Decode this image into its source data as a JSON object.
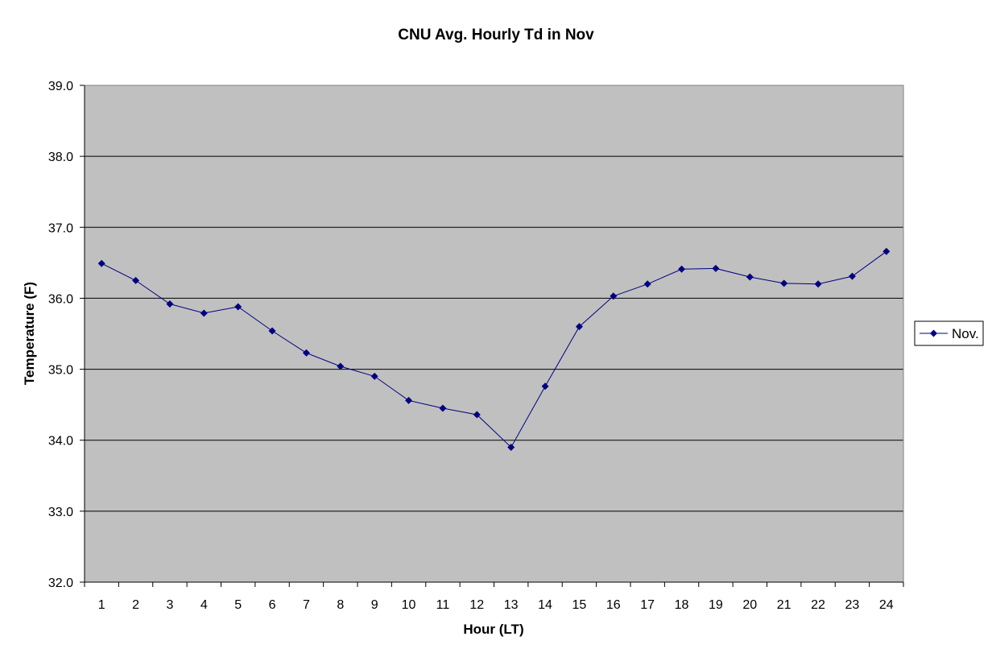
{
  "chart_data": {
    "type": "line",
    "title": "CNU Avg. Hourly Td in Nov",
    "xlabel": "Hour (LT)",
    "ylabel": "Temperature (F)",
    "categories": [
      "1",
      "2",
      "3",
      "4",
      "5",
      "6",
      "7",
      "8",
      "9",
      "10",
      "11",
      "12",
      "13",
      "14",
      "15",
      "16",
      "17",
      "18",
      "19",
      "20",
      "21",
      "22",
      "23",
      "24"
    ],
    "ylim": [
      32.0,
      39.0
    ],
    "yticks": [
      "32.0",
      "33.0",
      "34.0",
      "35.0",
      "36.0",
      "37.0",
      "38.0",
      "39.0"
    ],
    "grid": true,
    "legend_position": "right",
    "plot_background": "#C0C0C0",
    "series": [
      {
        "name": "Nov.",
        "color": "#000080",
        "marker": "diamond",
        "values": [
          36.49,
          36.25,
          35.92,
          35.79,
          35.88,
          35.54,
          35.23,
          35.04,
          34.9,
          34.56,
          34.45,
          34.36,
          33.9,
          34.76,
          35.6,
          36.03,
          36.2,
          36.41,
          36.42,
          36.3,
          36.21,
          36.2,
          36.31,
          36.66
        ]
      }
    ]
  }
}
